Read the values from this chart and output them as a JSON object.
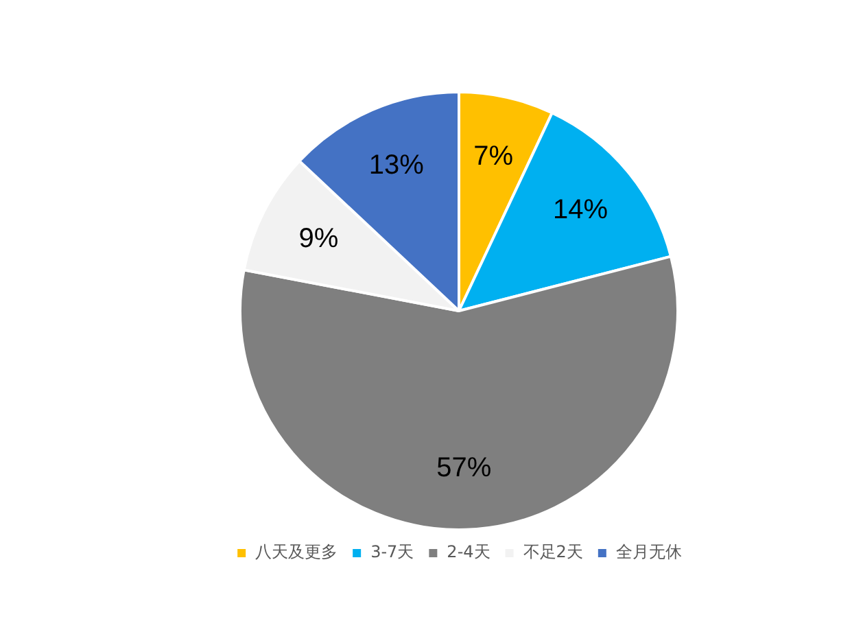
{
  "chart_data": {
    "type": "pie",
    "categories": [
      "八天及更多",
      "3-7天",
      "2-4天",
      "不足2天",
      "全月无休"
    ],
    "values": [
      7,
      14,
      57,
      9,
      13
    ],
    "value_labels": [
      "7%",
      "14%",
      "57%",
      "9%",
      "13%"
    ],
    "colors": [
      "#ffc000",
      "#00b0f0",
      "#7f7f7f",
      "#f2f2f2",
      "#4472c4"
    ],
    "legend": "bottom"
  }
}
